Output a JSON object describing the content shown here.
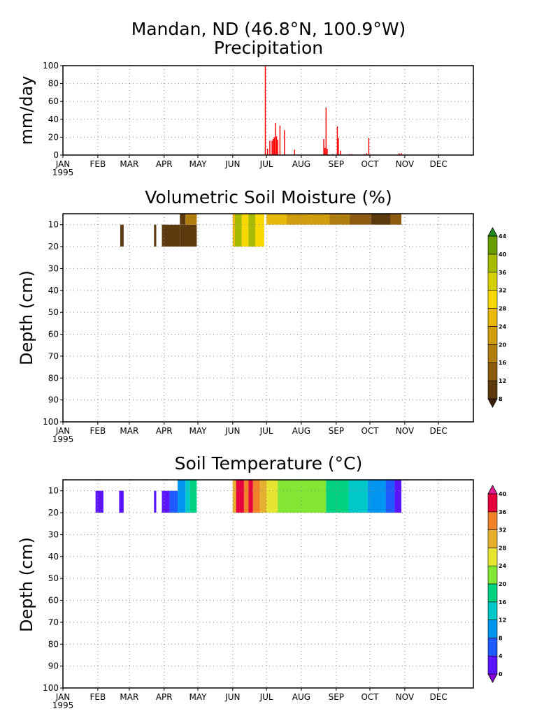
{
  "header": {
    "title_line1": "Mandan, ND  (46.8°N, 100.9°W)",
    "title_line2": "Precipitation"
  },
  "months": [
    "JAN",
    "FEB",
    "MAR",
    "APR",
    "MAY",
    "JUN",
    "JUL",
    "AUG",
    "SEP",
    "OCT",
    "NOV",
    "DEC"
  ],
  "year_label": "1995",
  "chart_data": [
    {
      "type": "bar",
      "title": "Precipitation",
      "ylabel": "mm/day",
      "xlim_day_of_year": [
        1,
        366
      ],
      "ylim": [
        0,
        100
      ],
      "yticks": [
        0,
        20,
        40,
        60,
        80,
        100
      ],
      "grid": true,
      "color": "#ff0000",
      "points": [
        [
          181,
          100
        ],
        [
          183,
          7
        ],
        [
          185,
          16
        ],
        [
          187,
          16
        ],
        [
          188,
          18
        ],
        [
          189,
          20
        ],
        [
          190,
          36
        ],
        [
          191,
          21
        ],
        [
          192,
          17
        ],
        [
          194,
          33
        ],
        [
          198,
          28
        ],
        [
          207,
          6
        ],
        [
          233,
          18
        ],
        [
          234,
          8
        ],
        [
          235,
          53
        ],
        [
          236,
          7
        ],
        [
          241,
          1
        ],
        [
          245,
          32
        ],
        [
          246,
          19
        ],
        [
          248,
          5
        ],
        [
          256,
          1
        ],
        [
          258,
          1
        ],
        [
          269,
          1
        ],
        [
          271,
          2
        ],
        [
          273,
          19
        ],
        [
          300,
          2
        ],
        [
          302,
          2
        ]
      ]
    },
    {
      "type": "heatmap",
      "title": "Volumetric Soil Moisture (%)",
      "ylabel": "Depth (cm)",
      "ylim": [
        100,
        5
      ],
      "yticks": [
        10,
        20,
        30,
        40,
        50,
        60,
        70,
        80,
        90,
        100
      ],
      "grid": true,
      "colorbar": {
        "levels": [
          8,
          12,
          16,
          20,
          24,
          28,
          32,
          36,
          40,
          44
        ],
        "colors": [
          "#3a2106",
          "#5c3a0d",
          "#8c5b0f",
          "#b07d0f",
          "#cf9d0e",
          "#e8b80b",
          "#f7d800",
          "#d7d000",
          "#a6ba00",
          "#6a9d00",
          "#1f8a1f"
        ]
      },
      "cells": [
        {
          "x0": 52,
          "x1": 55,
          "d0": 10,
          "d1": 20,
          "v": 9
        },
        {
          "x0": 82,
          "x1": 84,
          "d0": 10,
          "d1": 20,
          "v": 9
        },
        {
          "x0": 89,
          "x1": 105,
          "d0": 10,
          "d1": 20,
          "v": 9
        },
        {
          "x0": 105,
          "x1": 120,
          "d0": 10,
          "d1": 20,
          "v": 10
        },
        {
          "x0": 105,
          "x1": 110,
          "d0": 5,
          "d1": 10,
          "v": 11
        },
        {
          "x0": 110,
          "x1": 120,
          "d0": 5,
          "d1": 10,
          "v": 16
        },
        {
          "x0": 152,
          "x1": 154,
          "d0": 5,
          "d1": 20,
          "v": 26
        },
        {
          "x0": 154,
          "x1": 160,
          "d0": 5,
          "d1": 20,
          "v": 36
        },
        {
          "x0": 160,
          "x1": 166,
          "d0": 5,
          "d1": 20,
          "v": 29
        },
        {
          "x0": 166,
          "x1": 172,
          "d0": 5,
          "d1": 20,
          "v": 37
        },
        {
          "x0": 172,
          "x1": 180,
          "d0": 5,
          "d1": 20,
          "v": 28
        },
        {
          "x0": 182,
          "x1": 200,
          "d0": 5,
          "d1": 10,
          "v": 24
        },
        {
          "x0": 200,
          "x1": 222,
          "d0": 5,
          "d1": 10,
          "v": 21
        },
        {
          "x0": 222,
          "x1": 238,
          "d0": 5,
          "d1": 10,
          "v": 22
        },
        {
          "x0": 238,
          "x1": 256,
          "d0": 5,
          "d1": 10,
          "v": 19
        },
        {
          "x0": 256,
          "x1": 275,
          "d0": 5,
          "d1": 10,
          "v": 13
        },
        {
          "x0": 275,
          "x1": 292,
          "d0": 5,
          "d1": 10,
          "v": 10
        },
        {
          "x0": 292,
          "x1": 302,
          "d0": 5,
          "d1": 10,
          "v": 12
        }
      ]
    },
    {
      "type": "heatmap",
      "title": "Soil Temperature (°C)",
      "ylabel": "Depth (cm)",
      "ylim": [
        100,
        5
      ],
      "yticks": [
        10,
        20,
        30,
        40,
        50,
        60,
        70,
        80,
        90,
        100
      ],
      "grid": true,
      "colorbar": {
        "levels": [
          0,
          4,
          8,
          12,
          16,
          20,
          24,
          28,
          32,
          36,
          40
        ],
        "colors": [
          "#8a00dc",
          "#5a14ff",
          "#1e5aff",
          "#0096f0",
          "#00c8c8",
          "#00d282",
          "#82e632",
          "#e6e632",
          "#e6af2d",
          "#f08228",
          "#e6003c",
          "#e61e96"
        ]
      },
      "cells": [
        {
          "x0": 30,
          "x1": 37,
          "d0": 10,
          "d1": 20,
          "v": 1
        },
        {
          "x0": 51,
          "x1": 55,
          "d0": 10,
          "d1": 20,
          "v": 1
        },
        {
          "x0": 82,
          "x1": 84,
          "d0": 10,
          "d1": 20,
          "v": 1
        },
        {
          "x0": 89,
          "x1": 96,
          "d0": 10,
          "d1": 20,
          "v": 1
        },
        {
          "x0": 96,
          "x1": 103,
          "d0": 10,
          "d1": 20,
          "v": 5
        },
        {
          "x0": 103,
          "x1": 110,
          "d0": 5,
          "d1": 20,
          "v": 9
        },
        {
          "x0": 110,
          "x1": 114,
          "d0": 5,
          "d1": 20,
          "v": 13
        },
        {
          "x0": 114,
          "x1": 120,
          "d0": 5,
          "d1": 20,
          "v": 17
        },
        {
          "x0": 152,
          "x1": 155,
          "d0": 5,
          "d1": 20,
          "v": 30
        },
        {
          "x0": 155,
          "x1": 162,
          "d0": 5,
          "d1": 20,
          "v": 38
        },
        {
          "x0": 162,
          "x1": 166,
          "d0": 5,
          "d1": 20,
          "v": 33
        },
        {
          "x0": 166,
          "x1": 170,
          "d0": 5,
          "d1": 20,
          "v": 38
        },
        {
          "x0": 170,
          "x1": 176,
          "d0": 5,
          "d1": 20,
          "v": 34
        },
        {
          "x0": 176,
          "x1": 182,
          "d0": 5,
          "d1": 20,
          "v": 30
        },
        {
          "x0": 182,
          "x1": 192,
          "d0": 5,
          "d1": 20,
          "v": 25
        },
        {
          "x0": 192,
          "x1": 200,
          "d0": 5,
          "d1": 20,
          "v": 22
        },
        {
          "x0": 200,
          "x1": 235,
          "d0": 5,
          "d1": 20,
          "v": 21
        },
        {
          "x0": 235,
          "x1": 255,
          "d0": 5,
          "d1": 20,
          "v": 18
        },
        {
          "x0": 255,
          "x1": 272,
          "d0": 5,
          "d1": 20,
          "v": 14
        },
        {
          "x0": 272,
          "x1": 288,
          "d0": 5,
          "d1": 20,
          "v": 10
        },
        {
          "x0": 288,
          "x1": 296,
          "d0": 5,
          "d1": 20,
          "v": 6
        },
        {
          "x0": 296,
          "x1": 302,
          "d0": 5,
          "d1": 20,
          "v": 2
        }
      ]
    }
  ]
}
